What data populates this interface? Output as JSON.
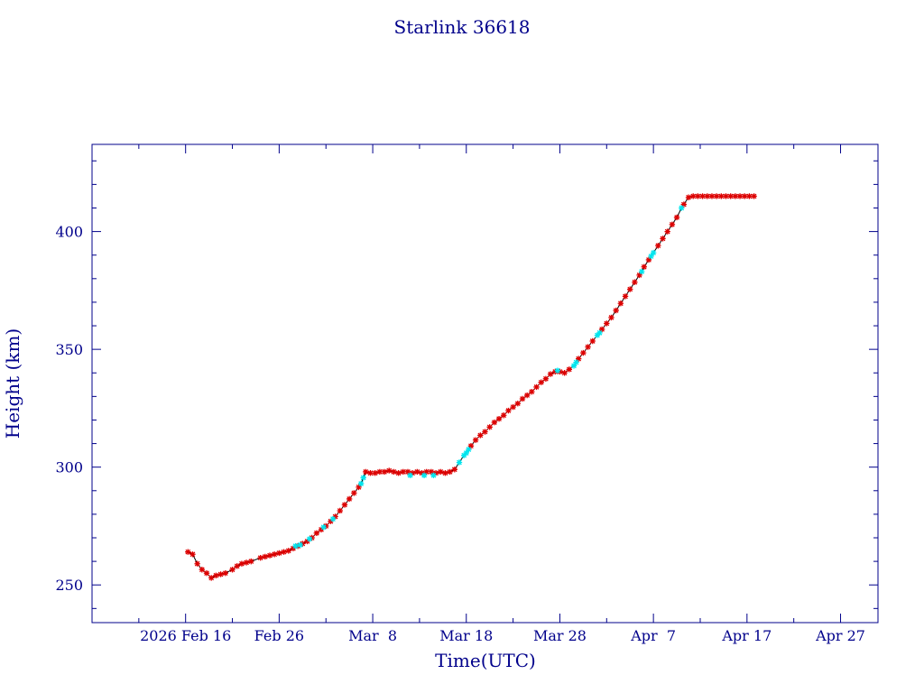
{
  "chart_data": {
    "type": "scatter",
    "title": "Starlink 36618",
    "xlabel": "Time(UTC)",
    "ylabel": "Height (km)",
    "xlim": [
      "2026-02-06",
      "2026-05-01"
    ],
    "ylim": [
      234,
      437
    ],
    "x_ticks": [
      {
        "date": "2026-02-16",
        "label": "2026 Feb 16"
      },
      {
        "date": "2026-02-26",
        "label": "Feb 26"
      },
      {
        "date": "2026-03-08",
        "label": "Mar  8"
      },
      {
        "date": "2026-03-18",
        "label": "Mar 18"
      },
      {
        "date": "2026-03-28",
        "label": "Mar 28"
      },
      {
        "date": "2026-04-07",
        "label": "Apr  7"
      },
      {
        "date": "2026-04-17",
        "label": "Apr 17"
      },
      {
        "date": "2026-04-27",
        "label": "Apr 27"
      }
    ],
    "y_ticks": [
      250,
      300,
      350,
      400
    ],
    "grid": false,
    "colors": {
      "axis": "#00008b",
      "text": "#00008b",
      "line": "#000000",
      "primary_marker": "#dd0000",
      "secondary_marker": "#00e5ee"
    },
    "series": [
      {
        "marker": "red-asterisk",
        "points": [
          [
            "2026-02-16T06:00",
            264
          ],
          [
            "2026-02-16T18:00",
            263
          ],
          [
            "2026-02-17T06:00",
            259
          ],
          [
            "2026-02-17T18:00",
            256.5
          ],
          [
            "2026-02-18T06:00",
            255
          ],
          [
            "2026-02-18T18:00",
            253
          ],
          [
            "2026-02-19T06:00",
            254
          ],
          [
            "2026-02-19T18:00",
            254.5
          ],
          [
            "2026-02-20T06:00",
            255
          ],
          [
            "2026-02-21T00:00",
            256.5
          ],
          [
            "2026-02-21T12:00",
            258
          ],
          [
            "2026-02-22T00:00",
            259
          ],
          [
            "2026-02-22T12:00",
            259.5
          ],
          [
            "2026-02-23T00:00",
            260
          ],
          [
            "2026-02-24T00:00",
            261.5
          ],
          [
            "2026-02-24T12:00",
            262
          ],
          [
            "2026-02-25T00:00",
            262.5
          ],
          [
            "2026-02-25T12:00",
            263
          ],
          [
            "2026-02-26T00:00",
            263.5
          ],
          [
            "2026-02-26T12:00",
            264
          ],
          [
            "2026-02-27T00:00",
            264.5
          ],
          [
            "2026-02-27T12:00",
            265.5
          ],
          [
            "2026-02-28T00:00",
            266.5
          ],
          [
            "2026-02-28T12:00",
            267.5
          ],
          [
            "2026-03-01T00:00",
            268.5
          ],
          [
            "2026-03-01T12:00",
            270
          ],
          [
            "2026-03-02T00:00",
            272
          ],
          [
            "2026-03-02T12:00",
            273.5
          ],
          [
            "2026-03-03T00:00",
            275
          ],
          [
            "2026-03-03T12:00",
            277
          ],
          [
            "2026-03-04T00:00",
            279
          ],
          [
            "2026-03-04T12:00",
            281.5
          ],
          [
            "2026-03-05T00:00",
            284
          ],
          [
            "2026-03-05T12:00",
            286.5
          ],
          [
            "2026-03-06T00:00",
            289
          ],
          [
            "2026-03-06T12:00",
            291.5
          ],
          [
            "2026-03-07T06:00",
            298
          ],
          [
            "2026-03-07T18:00",
            297.5
          ],
          [
            "2026-03-08T06:00",
            297.5
          ],
          [
            "2026-03-08T18:00",
            298
          ],
          [
            "2026-03-09T06:00",
            298
          ],
          [
            "2026-03-09T18:00",
            298.5
          ],
          [
            "2026-03-10T06:00",
            298
          ],
          [
            "2026-03-10T18:00",
            297.5
          ],
          [
            "2026-03-11T06:00",
            298
          ],
          [
            "2026-03-11T18:00",
            298
          ],
          [
            "2026-03-12T06:00",
            297.5
          ],
          [
            "2026-03-12T18:00",
            298
          ],
          [
            "2026-03-13T06:00",
            297.5
          ],
          [
            "2026-03-13T18:00",
            298
          ],
          [
            "2026-03-14T06:00",
            298
          ],
          [
            "2026-03-14T18:00",
            297.5
          ],
          [
            "2026-03-15T06:00",
            298
          ],
          [
            "2026-03-15T18:00",
            297.5
          ],
          [
            "2026-03-16T06:00",
            298
          ],
          [
            "2026-03-16T18:00",
            299
          ],
          [
            "2026-03-18T12:00",
            309
          ],
          [
            "2026-03-19T00:00",
            311.5
          ],
          [
            "2026-03-19T12:00",
            313.5
          ],
          [
            "2026-03-20T00:00",
            315
          ],
          [
            "2026-03-20T12:00",
            317
          ],
          [
            "2026-03-21T00:00",
            319
          ],
          [
            "2026-03-21T12:00",
            320.5
          ],
          [
            "2026-03-22T00:00",
            322
          ],
          [
            "2026-03-22T12:00",
            324
          ],
          [
            "2026-03-23T00:00",
            325.5
          ],
          [
            "2026-03-23T12:00",
            327
          ],
          [
            "2026-03-24T00:00",
            329
          ],
          [
            "2026-03-24T12:00",
            330.5
          ],
          [
            "2026-03-25T00:00",
            332
          ],
          [
            "2026-03-25T12:00",
            334
          ],
          [
            "2026-03-26T00:00",
            336
          ],
          [
            "2026-03-26T12:00",
            337.5
          ],
          [
            "2026-03-27T00:00",
            339.5
          ],
          [
            "2026-03-27T12:00",
            340.5
          ],
          [
            "2026-03-28T00:00",
            340.5
          ],
          [
            "2026-03-28T12:00",
            340
          ],
          [
            "2026-03-29T00:00",
            341.5
          ],
          [
            "2026-03-30T00:00",
            346
          ],
          [
            "2026-03-30T12:00",
            348.5
          ],
          [
            "2026-03-31T00:00",
            351
          ],
          [
            "2026-03-31T12:00",
            353.5
          ],
          [
            "2026-04-01T12:00",
            358.5
          ],
          [
            "2026-04-02T00:00",
            361
          ],
          [
            "2026-04-02T12:00",
            363.5
          ],
          [
            "2026-04-03T00:00",
            366.5
          ],
          [
            "2026-04-03T12:00",
            369.5
          ],
          [
            "2026-04-04T00:00",
            372.5
          ],
          [
            "2026-04-04T12:00",
            375.5
          ],
          [
            "2026-04-05T00:00",
            378.5
          ],
          [
            "2026-04-05T12:00",
            381.5
          ],
          [
            "2026-04-06T00:00",
            385
          ],
          [
            "2026-04-06T12:00",
            388
          ],
          [
            "2026-04-07T12:00",
            394
          ],
          [
            "2026-04-08T00:00",
            397
          ],
          [
            "2026-04-08T12:00",
            400
          ],
          [
            "2026-04-09T00:00",
            403
          ],
          [
            "2026-04-09T12:00",
            406
          ],
          [
            "2026-04-10T06:00",
            411.5
          ],
          [
            "2026-04-10T18:00",
            414.5
          ],
          [
            "2026-04-11T06:00",
            415
          ],
          [
            "2026-04-11T18:00",
            415
          ],
          [
            "2026-04-12T06:00",
            415
          ],
          [
            "2026-04-12T18:00",
            415
          ],
          [
            "2026-04-13T06:00",
            415
          ],
          [
            "2026-04-13T18:00",
            415
          ],
          [
            "2026-04-14T06:00",
            415
          ],
          [
            "2026-04-14T18:00",
            415
          ],
          [
            "2026-04-15T06:00",
            415
          ],
          [
            "2026-04-15T18:00",
            415
          ],
          [
            "2026-04-16T06:00",
            415
          ],
          [
            "2026-04-16T18:00",
            415
          ],
          [
            "2026-04-17T06:00",
            415
          ],
          [
            "2026-04-17T18:00",
            415
          ]
        ]
      },
      {
        "marker": "cyan-asterisk",
        "points": [
          [
            "2026-02-27T18:00",
            266.5
          ],
          [
            "2026-02-28T06:00",
            267
          ],
          [
            "2026-03-01T06:00",
            269.5
          ],
          [
            "2026-03-02T18:00",
            274.5
          ],
          [
            "2026-03-03T18:00",
            278
          ],
          [
            "2026-03-06T18:00",
            293
          ],
          [
            "2026-03-07T00:00",
            295.5
          ],
          [
            "2026-03-12T00:00",
            296.5
          ],
          [
            "2026-03-13T12:00",
            296.5
          ],
          [
            "2026-03-14T12:00",
            296.5
          ],
          [
            "2026-03-17T06:00",
            302
          ],
          [
            "2026-03-17T18:00",
            305
          ],
          [
            "2026-03-18T00:00",
            306
          ],
          [
            "2026-03-18T06:00",
            307.5
          ],
          [
            "2026-03-27T18:00",
            341
          ],
          [
            "2026-03-29T12:00",
            343
          ],
          [
            "2026-03-29T18:00",
            344.5
          ],
          [
            "2026-04-01T00:00",
            356
          ],
          [
            "2026-04-01T06:00",
            357
          ],
          [
            "2026-04-05T18:00",
            383
          ],
          [
            "2026-04-06T18:00",
            389.5
          ],
          [
            "2026-04-07T00:00",
            391
          ],
          [
            "2026-04-10T00:00",
            410
          ]
        ]
      }
    ]
  }
}
